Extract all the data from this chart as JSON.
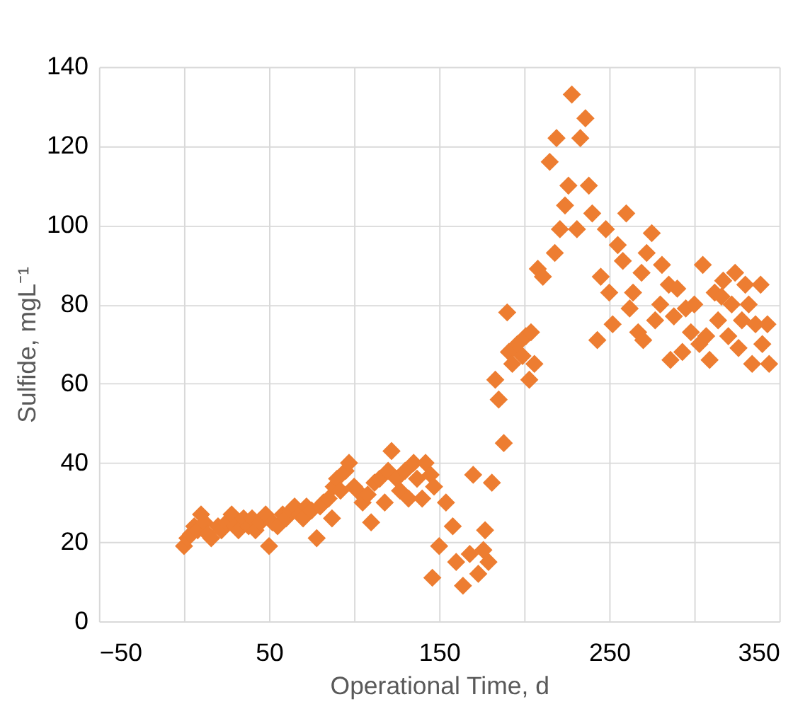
{
  "chart_data": {
    "type": "scatter",
    "xlabel": "Operational Time, d",
    "ylabel": "Sulfide, mgL⁻¹",
    "xlim": [
      -50,
      350
    ],
    "xticks": [
      -50,
      {
        "value": 0,
        "label": null
      },
      50,
      {
        "value": 100,
        "label": null
      },
      150,
      {
        "value": 200,
        "label": null
      },
      250,
      {
        "value": 300,
        "label": null
      },
      350
    ],
    "ylim": [
      0,
      140
    ],
    "yticks": [
      0,
      20,
      40,
      60,
      80,
      100,
      120,
      140
    ],
    "grid": true,
    "legend": false,
    "marker": "diamond",
    "x": [
      0,
      2,
      4,
      6,
      8,
      10,
      12,
      14,
      16,
      20,
      22,
      25,
      28,
      30,
      32,
      35,
      38,
      40,
      42,
      45,
      48,
      50,
      52,
      55,
      58,
      60,
      63,
      65,
      68,
      70,
      72,
      75,
      78,
      80,
      82,
      85,
      87,
      88,
      90,
      92,
      95,
      97,
      100,
      102,
      105,
      108,
      110,
      112,
      115,
      118,
      120,
      122,
      125,
      127,
      130,
      132,
      135,
      137,
      140,
      142,
      145,
      146,
      147,
      150,
      154,
      158,
      160,
      164,
      168,
      170,
      173,
      176,
      177,
      179,
      181,
      183,
      185,
      188,
      190,
      191,
      193,
      196,
      199,
      201,
      203,
      204,
      206,
      208,
      211,
      215,
      218,
      219,
      221,
      224,
      226,
      228,
      231,
      233,
      236,
      238,
      240,
      243,
      245,
      248,
      250,
      252,
      255,
      258,
      260,
      262,
      264,
      267,
      269,
      270,
      272,
      275,
      277,
      280,
      281,
      285,
      286,
      288,
      290,
      293,
      295,
      298,
      300,
      303,
      305,
      307,
      309,
      312,
      314,
      316,
      317,
      320,
      322,
      324,
      326,
      328,
      330,
      332,
      334,
      336,
      339,
      340,
      343,
      344
    ],
    "series": [
      {
        "color": "#ed7d31",
        "values": [
          19,
          21,
          22,
          24,
          23,
          27,
          25,
          22,
          21,
          24,
          23,
          25,
          27,
          24,
          23,
          26,
          24,
          26,
          23,
          25,
          27,
          19,
          25,
          24,
          27,
          26,
          28,
          29,
          27,
          26,
          29,
          28,
          21,
          29,
          30,
          31,
          26,
          34,
          36,
          33,
          38,
          40,
          34,
          33,
          30,
          32,
          25,
          35,
          36,
          30,
          38,
          43,
          36,
          33,
          38,
          31,
          40,
          36,
          31,
          40,
          37,
          11,
          34,
          19,
          30,
          24,
          15,
          9,
          17,
          37,
          12,
          18,
          23,
          15,
          35,
          61,
          56,
          45,
          78,
          68,
          65,
          70,
          67,
          72,
          61,
          73,
          65,
          89,
          87,
          116,
          93,
          122,
          99,
          105,
          110,
          133,
          99,
          122,
          127,
          110,
          103,
          71,
          87,
          99,
          83,
          75,
          95,
          91,
          103,
          79,
          83,
          73,
          88,
          71,
          93,
          98,
          76,
          80,
          90,
          85,
          66,
          77,
          84,
          68,
          79,
          73,
          80,
          70,
          90,
          72,
          66,
          83,
          76,
          82,
          86,
          72,
          80,
          88,
          69,
          76,
          85,
          80,
          65,
          75,
          85,
          70,
          75,
          65
        ]
      }
    ]
  }
}
